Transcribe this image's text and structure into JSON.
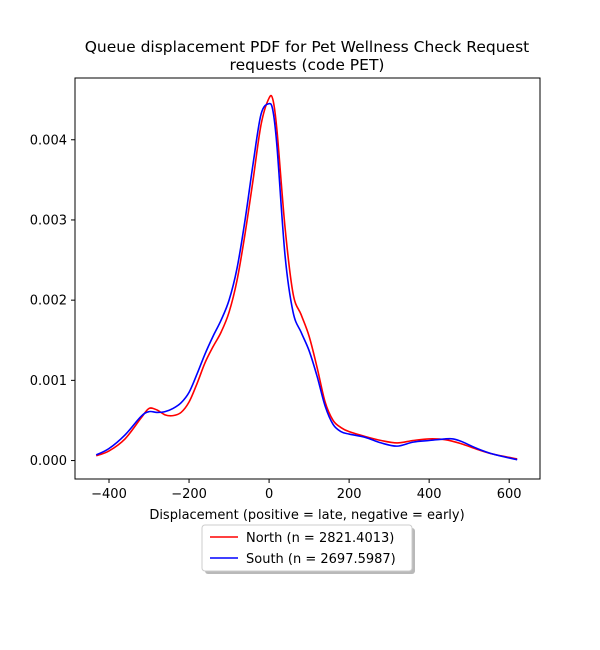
{
  "chart_data": {
    "type": "line",
    "title_line1": "Queue displacement PDF for Pet Wellness Check Request",
    "title_line2": "requests (code PET)",
    "xlabel": "Displacement (positive = late, negative = early)",
    "ylabel": "",
    "xlim": [
      -485,
      677
    ],
    "ylim": [
      -0.00023,
      0.00477
    ],
    "xticks": [
      -400,
      -200,
      0,
      200,
      400,
      600
    ],
    "yticks": [
      0.0,
      0.001,
      0.002,
      0.003,
      0.004
    ],
    "ytick_labels": [
      "0.000",
      "0.001",
      "0.002",
      "0.003",
      "0.004"
    ],
    "xtick_labels": [
      "−400",
      "−200",
      "0",
      "200",
      "400",
      "600"
    ],
    "legend_position": "bottom-center",
    "series": [
      {
        "name": "North (n = 2821.4013)",
        "color": "#ff0000",
        "x": [
          -432,
          -400,
          -360,
          -320,
          -300,
          -280,
          -260,
          -240,
          -220,
          -200,
          -180,
          -160,
          -140,
          -120,
          -100,
          -80,
          -60,
          -40,
          -20,
          0,
          10,
          20,
          40,
          60,
          80,
          100,
          120,
          140,
          160,
          180,
          200,
          240,
          280,
          320,
          360,
          400,
          440,
          480,
          520,
          560,
          620
        ],
        "y": [
          6e-05,
          0.00012,
          0.00027,
          0.00053,
          0.00065,
          0.00063,
          0.00057,
          0.00056,
          0.0006,
          0.00073,
          0.00096,
          0.00122,
          0.00142,
          0.0016,
          0.00185,
          0.00225,
          0.00283,
          0.0035,
          0.00419,
          0.00452,
          0.00449,
          0.0041,
          0.0029,
          0.00208,
          0.00182,
          0.00155,
          0.00116,
          0.00073,
          0.0005,
          0.00041,
          0.00036,
          0.0003,
          0.00025,
          0.00022,
          0.00025,
          0.00027,
          0.00026,
          0.00021,
          0.00014,
          8e-05,
          2e-05
        ]
      },
      {
        "name": "South (n = 2697.5987)",
        "color": "#0000ff",
        "x": [
          -432,
          -400,
          -360,
          -320,
          -300,
          -280,
          -260,
          -240,
          -220,
          -200,
          -180,
          -160,
          -140,
          -120,
          -100,
          -80,
          -60,
          -40,
          -20,
          0,
          10,
          20,
          40,
          60,
          80,
          100,
          120,
          140,
          160,
          180,
          200,
          240,
          280,
          320,
          360,
          400,
          440,
          460,
          480,
          520,
          560,
          620
        ],
        "y": [
          7e-05,
          0.00015,
          0.00032,
          0.00055,
          0.00061,
          0.0006,
          0.00061,
          0.00065,
          0.00072,
          0.00085,
          0.00108,
          0.00133,
          0.00155,
          0.00175,
          0.002,
          0.0024,
          0.003,
          0.0037,
          0.00432,
          0.00445,
          0.00435,
          0.0039,
          0.00255,
          0.00185,
          0.0016,
          0.00137,
          0.00105,
          0.00068,
          0.00045,
          0.00036,
          0.00033,
          0.00029,
          0.00022,
          0.00018,
          0.00023,
          0.00025,
          0.00027,
          0.00027,
          0.00024,
          0.00015,
          8e-05,
          1e-05
        ]
      }
    ]
  }
}
